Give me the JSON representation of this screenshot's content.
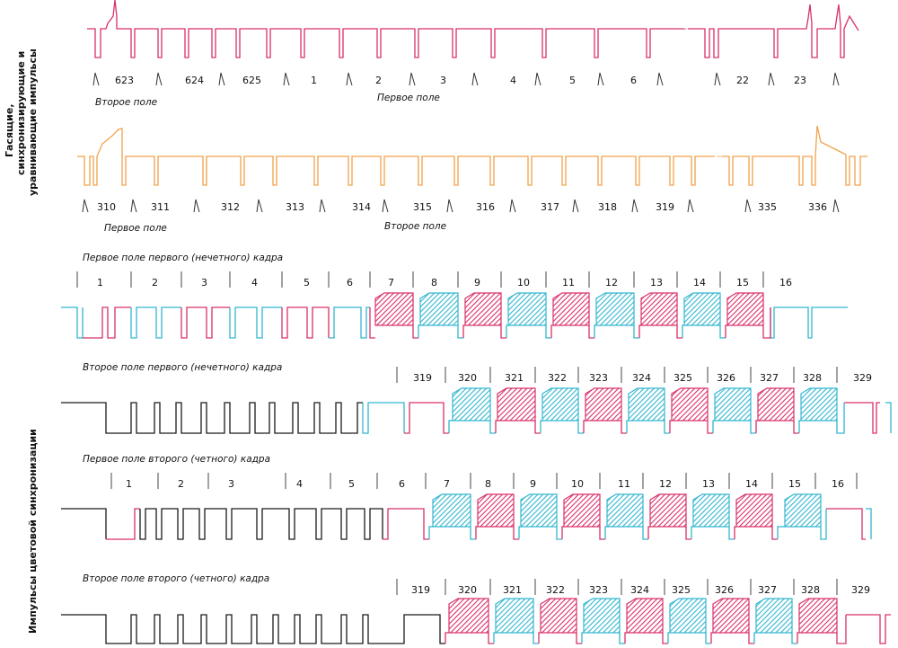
{
  "colors": {
    "pink": "#d9306b",
    "orange": "#f2a24b",
    "cyan": "#33b6d0",
    "black": "#1a1a1a"
  },
  "side_labels": {
    "top": [
      "Гасящие,",
      "синхронизирующие и",
      "уравнивающие импульсы"
    ],
    "bottom": "Импульсы цветовой синхронизации"
  },
  "rows": [
    {
      "color": "pink",
      "numbers": [
        "623",
        "624",
        "625",
        "1",
        "2",
        "3",
        "4",
        "5",
        "6",
        "22",
        "23"
      ],
      "captions": [
        "Второе поле",
        "Первое поле"
      ]
    },
    {
      "color": "orange",
      "numbers": [
        "310",
        "311",
        "312",
        "313",
        "314",
        "315",
        "316",
        "317",
        "318",
        "319",
        "335",
        "336"
      ],
      "captions": [
        "Первое поле",
        "Второе поле"
      ]
    },
    {
      "title": "Первое поле первого (нечетного) кадра",
      "numbers": [
        "1",
        "2",
        "3",
        "4",
        "5",
        "6",
        "7",
        "8",
        "9",
        "10",
        "11",
        "12",
        "13",
        "14",
        "15",
        "16"
      ],
      "bursts": [
        "pink",
        "cyan",
        "pink",
        "cyan",
        "pink",
        "cyan",
        "pink",
        "cyan",
        "pink"
      ]
    },
    {
      "title": "Второе поле первого (нечетного) кадра",
      "numbers": [
        "319",
        "320",
        "321",
        "322",
        "323",
        "324",
        "325",
        "326",
        "327",
        "328",
        "329"
      ],
      "bursts": [
        "cyan",
        "pink",
        "cyan",
        "pink",
        "cyan",
        "pink",
        "cyan",
        "pink",
        "cyan"
      ]
    },
    {
      "title": "Первое поле второго (четного) кадра",
      "numbers": [
        "1",
        "2",
        "3",
        "4",
        "5",
        "6",
        "7",
        "8",
        "9",
        "10",
        "11",
        "12",
        "13",
        "14",
        "15",
        "16"
      ],
      "bursts": [
        "cyan",
        "pink",
        "cyan",
        "pink",
        "cyan",
        "pink",
        "cyan",
        "pink",
        "cyan"
      ]
    },
    {
      "title": "Второе поле второго (четного) кадра",
      "numbers": [
        "319",
        "320",
        "321",
        "322",
        "323",
        "324",
        "325",
        "326",
        "327",
        "328",
        "329"
      ],
      "bursts": [
        "pink",
        "cyan",
        "pink",
        "cyan",
        "pink",
        "cyan",
        "pink",
        "cyan",
        "pink"
      ]
    }
  ]
}
